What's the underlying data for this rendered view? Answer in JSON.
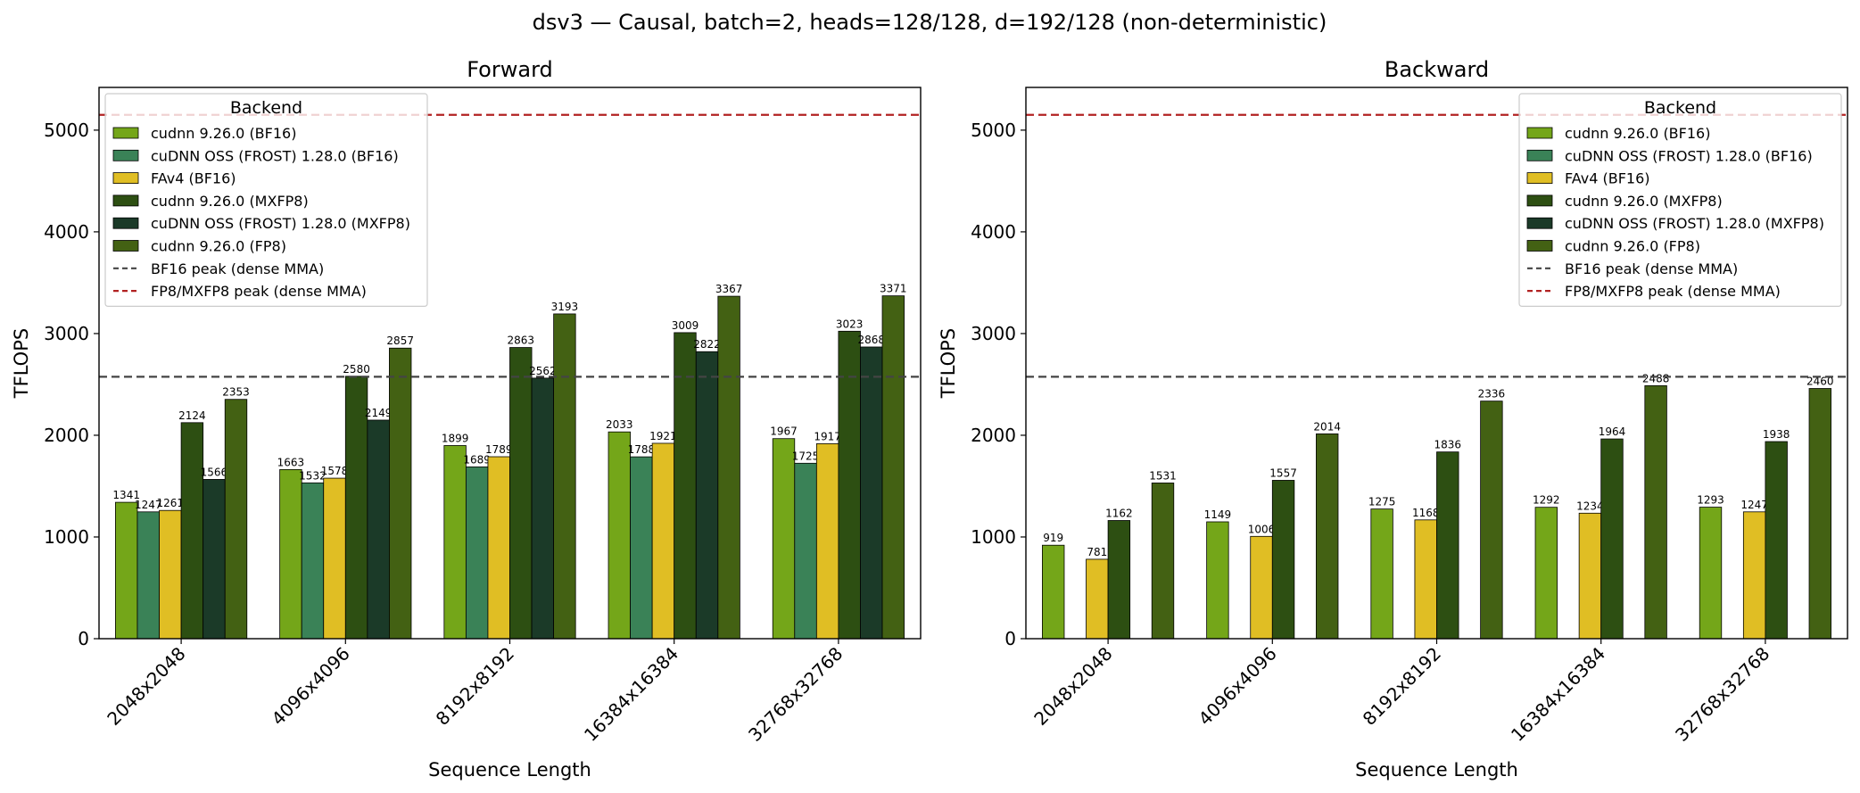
{
  "figure_title": "dsv3 — Causal, batch=2, heads=128/128, d=192/128 (non-deterministic)",
  "colors": {
    "cudnn_bf16": "#74a619",
    "frost_bf16": "#3a8257",
    "fav4_bf16": "#e0be24",
    "cudnn_mxfp8": "#2d4f12",
    "frost_mxfp8": "#1b3a28",
    "cudnn_fp8": "#436113",
    "bf16_peak": "#444444",
    "fp8_peak": "#b22222"
  },
  "chart_data": [
    {
      "type": "bar",
      "title": "Forward",
      "xlabel": "Sequence Length",
      "ylabel": "TFLOPS",
      "ylim": [
        0,
        5420
      ],
      "yticks": [
        0,
        1000,
        2000,
        3000,
        4000,
        5000
      ],
      "grid": false,
      "legend_placement": "upper left",
      "legend_title": "Backend",
      "categories": [
        "2048x2048",
        "4096x4096",
        "8192x8192",
        "16384x16384",
        "32768x32768"
      ],
      "series": [
        {
          "name": "cudnn 9.26.0 (BF16)",
          "color_key": "cudnn_bf16",
          "values": [
            1341,
            1663,
            1899,
            2033,
            1967
          ]
        },
        {
          "name": "cuDNN OSS (FROST) 1.28.0 (BF16)",
          "color_key": "frost_bf16",
          "values": [
            1247,
            1532,
            1689,
            1788,
            1725
          ]
        },
        {
          "name": "FAv4 (BF16)",
          "color_key": "fav4_bf16",
          "values": [
            1261,
            1578,
            1789,
            1921,
            1917
          ]
        },
        {
          "name": "cudnn 9.26.0 (MXFP8)",
          "color_key": "cudnn_mxfp8",
          "values": [
            2124,
            2580,
            2863,
            3009,
            3023
          ]
        },
        {
          "name": "cuDNN OSS (FROST) 1.28.0 (MXFP8)",
          "color_key": "frost_mxfp8",
          "values": [
            1566,
            2149,
            2562,
            2822,
            2868
          ]
        },
        {
          "name": "cudnn 9.26.0 (FP8)",
          "color_key": "cudnn_fp8",
          "values": [
            2353,
            2857,
            3193,
            3367,
            3371
          ]
        }
      ],
      "reference_lines": [
        {
          "name": "BF16 peak (dense MMA)",
          "value": 2575,
          "color_key": "bf16_peak"
        },
        {
          "name": "FP8/MXFP8 peak (dense MMA)",
          "value": 5150,
          "color_key": "fp8_peak"
        }
      ]
    },
    {
      "type": "bar",
      "title": "Backward",
      "xlabel": "Sequence Length",
      "ylabel": "TFLOPS",
      "ylim": [
        0,
        5420
      ],
      "yticks": [
        0,
        1000,
        2000,
        3000,
        4000,
        5000
      ],
      "grid": false,
      "legend_placement": "upper right",
      "legend_title": "Backend",
      "categories": [
        "2048x2048",
        "4096x4096",
        "8192x8192",
        "16384x16384",
        "32768x32768"
      ],
      "series": [
        {
          "name": "cudnn 9.26.0 (BF16)",
          "color_key": "cudnn_bf16",
          "values": [
            919,
            1149,
            1275,
            1292,
            1293
          ]
        },
        {
          "name": "cuDNN OSS (FROST) 1.28.0 (BF16)",
          "color_key": "frost_bf16",
          "values": [
            null,
            null,
            null,
            null,
            null
          ]
        },
        {
          "name": "FAv4 (BF16)",
          "color_key": "fav4_bf16",
          "values": [
            781,
            1006,
            1168,
            1234,
            1247
          ]
        },
        {
          "name": "cudnn 9.26.0 (MXFP8)",
          "color_key": "cudnn_mxfp8",
          "values": [
            1162,
            1557,
            1836,
            1964,
            1938
          ]
        },
        {
          "name": "cuDNN OSS (FROST) 1.28.0 (MXFP8)",
          "color_key": "frost_mxfp8",
          "values": [
            null,
            null,
            null,
            null,
            null
          ]
        },
        {
          "name": "cudnn 9.26.0 (FP8)",
          "color_key": "cudnn_fp8",
          "values": [
            1531,
            2014,
            2336,
            2488,
            2460
          ]
        }
      ],
      "reference_lines": [
        {
          "name": "BF16 peak (dense MMA)",
          "value": 2575,
          "color_key": "bf16_peak"
        },
        {
          "name": "FP8/MXFP8 peak (dense MMA)",
          "value": 5150,
          "color_key": "fp8_peak"
        }
      ]
    }
  ]
}
